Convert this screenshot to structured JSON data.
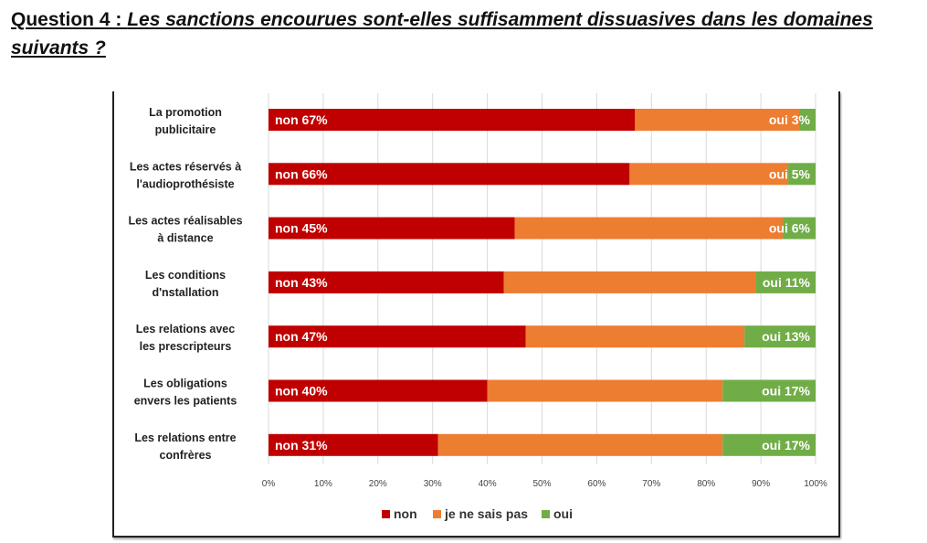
{
  "heading": {
    "label": "Question 4 : ",
    "text": "Les sanctions encourues sont-elles suffisamment dissuasives dans les domaines suivants ?"
  },
  "colors": {
    "non": "#c00000",
    "je_ne_sais_pas": "#ed7d31",
    "oui": "#70ad47"
  },
  "chart_data": {
    "type": "bar",
    "orientation": "horizontal",
    "stacked": "percent",
    "categories": [
      [
        "La promotion",
        "publicitaire"
      ],
      [
        "Les actes réservés à",
        "l'audioprothésiste"
      ],
      [
        "Les actes réalisables",
        "à distance"
      ],
      [
        "Les conditions",
        "d'nstallation"
      ],
      [
        "Les relations avec",
        "les prescripteurs"
      ],
      [
        "Les obligations",
        "envers les patients"
      ],
      [
        "Les relations entre",
        "confrères"
      ]
    ],
    "series": [
      {
        "name": "non",
        "values": [
          67,
          66,
          45,
          43,
          47,
          40,
          31
        ],
        "labels": [
          "non 67%",
          "non 66%",
          "non 45%",
          "non 43%",
          "non 47%",
          "non 40%",
          "non 31%"
        ]
      },
      {
        "name": "je ne sais pas",
        "values": [
          30,
          29,
          49,
          46,
          40,
          43,
          52
        ]
      },
      {
        "name": "oui",
        "values": [
          3,
          5,
          6,
          11,
          13,
          17,
          17
        ],
        "labels": [
          "oui 3%",
          "oui 5%",
          "oui 6%",
          "oui 11%",
          "oui 13%",
          "oui 17%",
          "oui 17%"
        ]
      }
    ],
    "xlim": [
      0,
      100
    ],
    "xticks": [
      "0%",
      "10%",
      "20%",
      "30%",
      "40%",
      "50%",
      "60%",
      "70%",
      "80%",
      "90%",
      "100%"
    ],
    "grid": true,
    "legend": "bottom"
  }
}
